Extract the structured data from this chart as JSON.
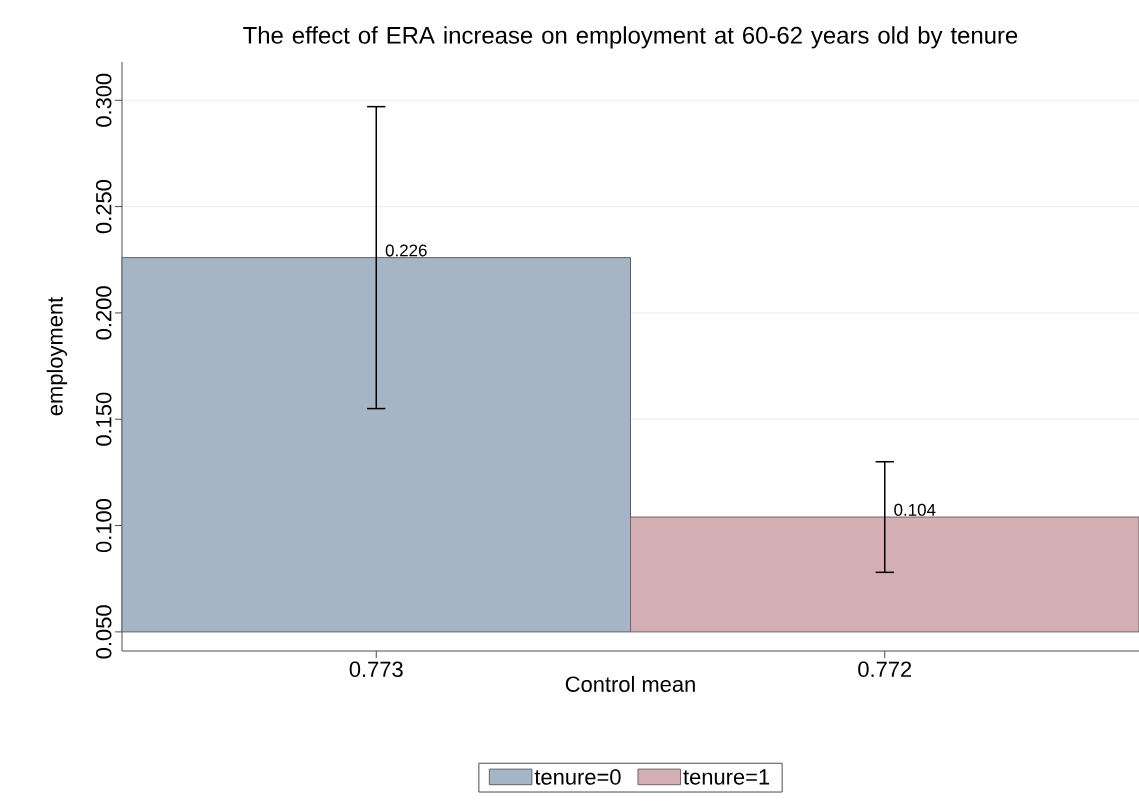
{
  "chart_data": {
    "type": "bar",
    "title": "The effect of ERA increase on employment at 60-62 years old by tenure",
    "xlabel": "Control mean",
    "ylabel": "employment",
    "categories": [
      "0.773",
      "0.772"
    ],
    "series": [
      {
        "name": "tenure=0",
        "color": "#a5b5c6",
        "values": [
          0.176,
          null
        ],
        "base": [
          0.05,
          null
        ],
        "errors": [
          0.071,
          null
        ],
        "value_labels": [
          "0.226",
          null
        ]
      },
      {
        "name": "tenure=1",
        "color": "#d3afb3",
        "values": [
          null,
          0.054
        ],
        "base": [
          null,
          0.05
        ],
        "errors": [
          null,
          0.026
        ],
        "value_labels": [
          null,
          "0.104"
        ]
      }
    ],
    "ylim": [
      0.041,
      0.318
    ],
    "yticks": [
      {
        "value": 0.05,
        "label": "0.050"
      },
      {
        "value": 0.1,
        "label": "0.100"
      },
      {
        "value": 0.15,
        "label": "0.150"
      },
      {
        "value": 0.2,
        "label": "0.200"
      },
      {
        "value": 0.25,
        "label": "0.250"
      },
      {
        "value": 0.3,
        "label": "0.300"
      }
    ],
    "grid": "y",
    "legend": "bottom"
  }
}
